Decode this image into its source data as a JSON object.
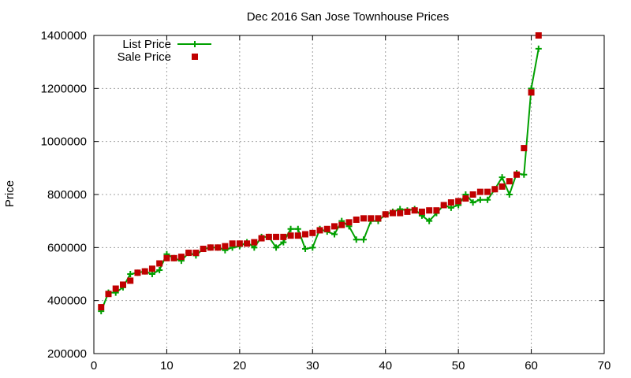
{
  "chart_data": {
    "type": "line",
    "title": "Dec 2016 San Jose Townhouse Prices",
    "xlabel": "",
    "ylabel": "Price",
    "xlim": [
      0,
      70
    ],
    "ylim": [
      200000,
      1400000
    ],
    "x_ticks": [
      0,
      10,
      20,
      30,
      40,
      50,
      60,
      70
    ],
    "y_ticks": [
      200000,
      400000,
      600000,
      800000,
      1000000,
      1200000,
      1400000
    ],
    "grid": true,
    "legend_position": "top-left",
    "series": [
      {
        "name": "List Price",
        "color": "#00a000",
        "style": "line-with-plus-markers",
        "x": [
          1,
          2,
          3,
          4,
          5,
          6,
          7,
          8,
          9,
          10,
          11,
          12,
          13,
          14,
          15,
          16,
          17,
          18,
          19,
          20,
          21,
          22,
          23,
          24,
          25,
          26,
          27,
          28,
          29,
          30,
          31,
          32,
          33,
          34,
          35,
          36,
          37,
          38,
          39,
          40,
          41,
          42,
          43,
          44,
          45,
          46,
          47,
          48,
          49,
          50,
          51,
          52,
          53,
          54,
          55,
          56,
          57,
          58,
          59,
          60,
          61
        ],
        "values": [
          360000,
          430000,
          430000,
          450000,
          500000,
          505000,
          510000,
          500000,
          515000,
          575000,
          560000,
          550000,
          580000,
          570000,
          595000,
          600000,
          600000,
          590000,
          600000,
          605000,
          620000,
          600000,
          640000,
          640000,
          600000,
          620000,
          670000,
          670000,
          595000,
          600000,
          670000,
          660000,
          650000,
          700000,
          680000,
          630000,
          630000,
          700000,
          700000,
          725000,
          735000,
          745000,
          740000,
          745000,
          720000,
          700000,
          730000,
          760000,
          750000,
          760000,
          800000,
          770000,
          780000,
          780000,
          820000,
          865000,
          800000,
          880000,
          875000,
          1200000,
          1350000
        ]
      },
      {
        "name": "Sale Price",
        "color": "#c00000",
        "style": "square-markers",
        "x": [
          1,
          2,
          3,
          4,
          5,
          6,
          7,
          8,
          9,
          10,
          11,
          12,
          13,
          14,
          15,
          16,
          17,
          18,
          19,
          20,
          21,
          22,
          23,
          24,
          25,
          26,
          27,
          28,
          29,
          30,
          31,
          32,
          33,
          34,
          35,
          36,
          37,
          38,
          39,
          40,
          41,
          42,
          43,
          44,
          45,
          46,
          47,
          48,
          49,
          50,
          51,
          52,
          53,
          54,
          55,
          56,
          57,
          58,
          59,
          60,
          61
        ],
        "values": [
          375000,
          425000,
          445000,
          460000,
          475000,
          505000,
          510000,
          520000,
          540000,
          560000,
          560000,
          565000,
          580000,
          580000,
          595000,
          600000,
          600000,
          605000,
          615000,
          615000,
          615000,
          620000,
          635000,
          640000,
          640000,
          640000,
          645000,
          645000,
          650000,
          655000,
          665000,
          670000,
          680000,
          685000,
          695000,
          705000,
          710000,
          710000,
          710000,
          725000,
          730000,
          730000,
          735000,
          740000,
          735000,
          740000,
          740000,
          760000,
          770000,
          775000,
          785000,
          800000,
          810000,
          810000,
          820000,
          830000,
          850000,
          875000,
          975000,
          1185000,
          1400000
        ]
      }
    ]
  }
}
